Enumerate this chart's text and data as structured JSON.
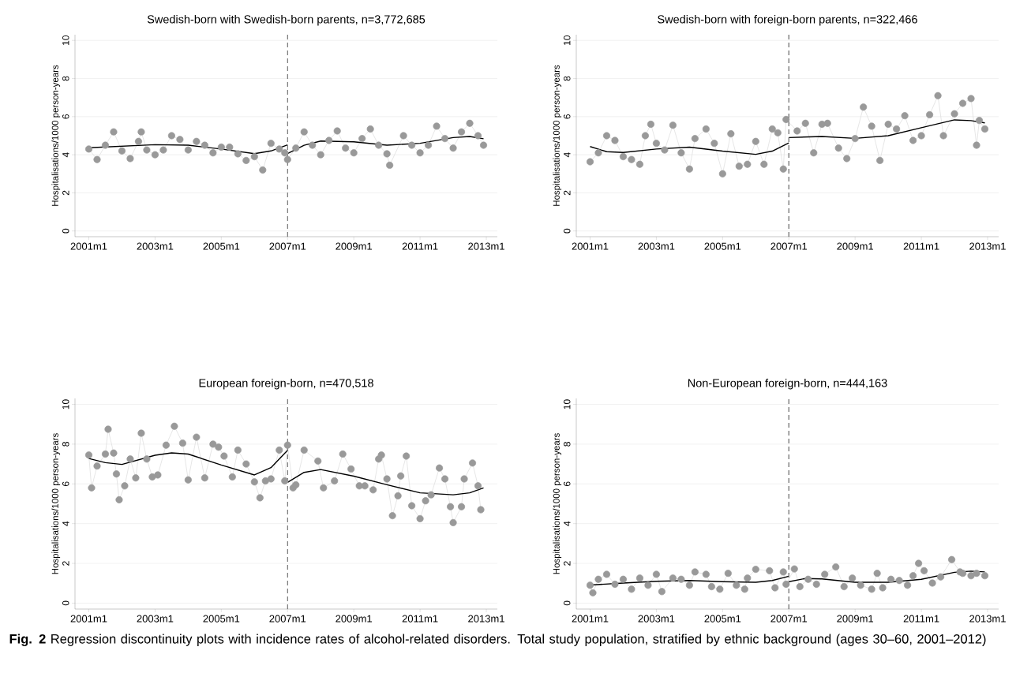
{
  "chart_data": [
    {
      "type": "line",
      "title": "Swedish-born with Swedish-born parents, n=3,772,685",
      "ylabel": "Hospitalisations/1000 person-years",
      "xlim": [
        "2000-08",
        "2013-05"
      ],
      "ylim": [
        -0.3,
        10.3
      ],
      "xticks": [
        {
          "value": "2001-01",
          "label": "2001m1"
        },
        {
          "value": "2003-01",
          "label": "2003m1"
        },
        {
          "value": "2005-01",
          "label": "2005m1"
        },
        {
          "value": "2007-01",
          "label": "2007m1"
        },
        {
          "value": "2009-01",
          "label": "2009m1"
        },
        {
          "value": "2011-01",
          "label": "2011m1"
        },
        {
          "value": "2013-01",
          "label": "2013m1"
        }
      ],
      "yticks": [
        0,
        2,
        4,
        6,
        8,
        10
      ],
      "grid": "y",
      "ref_lines": [
        {
          "axis": "x",
          "value": "2007-01",
          "color": "#707070",
          "line_style": "dashed"
        }
      ],
      "series": [
        {
          "color": "#999999",
          "marker": "circle",
          "x": [
            "2001-01",
            "2001-04",
            "2001-07",
            "2001-10",
            "2002-01",
            "2002-04",
            "2002-07",
            "2002-08",
            "2002-10",
            "2003-01",
            "2003-04",
            "2003-07",
            "2003-10",
            "2004-01",
            "2004-04",
            "2004-07",
            "2004-10",
            "2005-01",
            "2005-04",
            "2005-07",
            "2005-10",
            "2006-01",
            "2006-04",
            "2006-07",
            "2006-10",
            "2006-12",
            "2007-01",
            "2007-04",
            "2007-07",
            "2007-10",
            "2008-01",
            "2008-04",
            "2008-07",
            "2008-10",
            "2009-01",
            "2009-04",
            "2009-07",
            "2009-10",
            "2010-01",
            "2010-02",
            "2010-07",
            "2010-10",
            "2011-01",
            "2011-04",
            "2011-07",
            "2011-10",
            "2012-01",
            "2012-04",
            "2012-07",
            "2012-10",
            "2012-12"
          ],
          "values": [
            4.3,
            3.75,
            4.5,
            5.2,
            4.2,
            3.8,
            4.7,
            5.2,
            4.25,
            4.0,
            4.25,
            5.0,
            4.8,
            4.25,
            4.7,
            4.5,
            4.1,
            4.4,
            4.4,
            4.05,
            3.7,
            3.9,
            3.2,
            4.6,
            4.3,
            4.1,
            3.75,
            4.35,
            5.2,
            4.5,
            4.0,
            4.75,
            5.25,
            4.35,
            4.1,
            4.85,
            5.35,
            4.5,
            4.05,
            3.45,
            5.0,
            4.5,
            4.1,
            4.5,
            5.5,
            4.85,
            4.35,
            5.2,
            5.65,
            5.0,
            4.5
          ]
        },
        {
          "color": "#000000",
          "marker": "none",
          "x": [
            "2001-01",
            "2003-01",
            "2004-01",
            "2005-01",
            "2006-01",
            "2006-07",
            "2007-01"
          ],
          "values": [
            4.37,
            4.53,
            4.5,
            4.3,
            4.06,
            4.2,
            4.52
          ]
        },
        {
          "color": "#000000",
          "marker": "none",
          "x": [
            "2007-01",
            "2007-07",
            "2008-01",
            "2009-01",
            "2010-01",
            "2011-01",
            "2012-01",
            "2012-07",
            "2012-12"
          ],
          "values": [
            4.06,
            4.5,
            4.72,
            4.68,
            4.5,
            4.6,
            4.9,
            4.96,
            4.84
          ]
        }
      ]
    },
    {
      "type": "line",
      "title": "Swedish-born with foreign-born parents, n=322,466",
      "ylabel": "Hospitalisations/1000 person-years",
      "xlim": [
        "2000-08",
        "2013-05"
      ],
      "ylim": [
        -0.3,
        10.3
      ],
      "xticks": [
        {
          "value": "2001-01",
          "label": "2001m1"
        },
        {
          "value": "2003-01",
          "label": "2003m1"
        },
        {
          "value": "2005-01",
          "label": "2005m1"
        },
        {
          "value": "2007-01",
          "label": "2007m1"
        },
        {
          "value": "2009-01",
          "label": "2009m1"
        },
        {
          "value": "2011-01",
          "label": "2011m1"
        },
        {
          "value": "2013-01",
          "label": "2013m1"
        }
      ],
      "yticks": [
        0,
        2,
        4,
        6,
        8,
        10
      ],
      "grid": "y",
      "ref_lines": [
        {
          "axis": "x",
          "value": "2007-01",
          "color": "#707070",
          "line_style": "dashed"
        }
      ],
      "series": [
        {
          "color": "#999999",
          "marker": "circle",
          "x": [
            "2001-01",
            "2001-04",
            "2001-07",
            "2001-10",
            "2002-01",
            "2002-04",
            "2002-07",
            "2002-09",
            "2002-11",
            "2003-01",
            "2003-04",
            "2003-07",
            "2003-10",
            "2004-01",
            "2004-03",
            "2004-07",
            "2004-10",
            "2005-01",
            "2005-04",
            "2005-07",
            "2005-10",
            "2006-01",
            "2006-04",
            "2006-07",
            "2006-09",
            "2006-11",
            "2006-12",
            "2007-04",
            "2007-07",
            "2007-10",
            "2008-01",
            "2008-03",
            "2008-07",
            "2008-10",
            "2009-01",
            "2009-04",
            "2009-07",
            "2009-10",
            "2010-01",
            "2010-04",
            "2010-07",
            "2010-10",
            "2011-01",
            "2011-04",
            "2011-07",
            "2011-09",
            "2012-01",
            "2012-04",
            "2012-07",
            "2012-09",
            "2012-10",
            "2012-12"
          ],
          "values": [
            3.63,
            4.1,
            5.0,
            4.75,
            3.9,
            3.75,
            3.5,
            5.0,
            5.6,
            4.6,
            4.25,
            5.55,
            4.1,
            3.25,
            4.85,
            5.35,
            4.6,
            3.0,
            5.1,
            3.4,
            3.5,
            4.7,
            3.5,
            5.35,
            5.15,
            3.25,
            5.85,
            5.25,
            5.65,
            4.1,
            5.6,
            5.65,
            4.35,
            3.8,
            4.85,
            6.5,
            5.5,
            3.7,
            5.6,
            5.35,
            6.05,
            4.75,
            5.0,
            6.1,
            7.1,
            5.0,
            6.15,
            6.7,
            6.95,
            4.5,
            5.8,
            5.35
          ]
        },
        {
          "color": "#000000",
          "marker": "none",
          "x": [
            "2001-01",
            "2001-07",
            "2002-01",
            "2003-01",
            "2004-01",
            "2005-01",
            "2006-01",
            "2006-07",
            "2007-01"
          ],
          "values": [
            4.43,
            4.16,
            4.12,
            4.3,
            4.4,
            4.19,
            4.02,
            4.19,
            4.62
          ]
        },
        {
          "color": "#000000",
          "marker": "none",
          "x": [
            "2007-01",
            "2008-01",
            "2009-01",
            "2010-01",
            "2011-01",
            "2012-01",
            "2012-07",
            "2012-12"
          ],
          "values": [
            4.9,
            4.96,
            4.86,
            5.0,
            5.42,
            5.83,
            5.79,
            5.67
          ]
        }
      ]
    },
    {
      "type": "line",
      "title": "European foreign-born, n=470,518",
      "ylabel": "Hospitalisations/1000 person-years",
      "xlim": [
        "2000-08",
        "2013-05"
      ],
      "ylim": [
        -0.3,
        10.3
      ],
      "xticks": [
        {
          "value": "2001-01",
          "label": "2001m1"
        },
        {
          "value": "2003-01",
          "label": "2003m1"
        },
        {
          "value": "2005-01",
          "label": "2005m1"
        },
        {
          "value": "2007-01",
          "label": "2007m1"
        },
        {
          "value": "2009-01",
          "label": "2009m1"
        },
        {
          "value": "2011-01",
          "label": "2011m1"
        },
        {
          "value": "2013-01",
          "label": "2013m1"
        }
      ],
      "yticks": [
        0,
        2,
        4,
        6,
        8,
        10
      ],
      "grid": "y",
      "ref_lines": [
        {
          "axis": "x",
          "value": "2007-01",
          "color": "#707070",
          "line_style": "dashed"
        }
      ],
      "series": [
        {
          "color": "#999999",
          "marker": "circle",
          "x": [
            "2001-01",
            "2001-02",
            "2001-04",
            "2001-07",
            "2001-08",
            "2001-10",
            "2001-11",
            "2001-12",
            "2002-02",
            "2002-04",
            "2002-06",
            "2002-08",
            "2002-10",
            "2002-12",
            "2003-02",
            "2003-05",
            "2003-08",
            "2003-11",
            "2004-01",
            "2004-04",
            "2004-07",
            "2004-10",
            "2004-12",
            "2005-02",
            "2005-05",
            "2005-07",
            "2005-10",
            "2006-01",
            "2006-03",
            "2006-05",
            "2006-07",
            "2006-10",
            "2006-12",
            "2007-01",
            "2007-03",
            "2007-04",
            "2007-07",
            "2007-12",
            "2008-02",
            "2008-06",
            "2008-09",
            "2008-12",
            "2009-03",
            "2009-05",
            "2009-08",
            "2009-10",
            "2009-11",
            "2010-01",
            "2010-03",
            "2010-05",
            "2010-06",
            "2010-08",
            "2010-10",
            "2011-01",
            "2011-03",
            "2011-05",
            "2011-08",
            "2011-10",
            "2011-12",
            "2012-01",
            "2012-04",
            "2012-05",
            "2012-08",
            "2012-10",
            "2012-11"
          ],
          "values": [
            7.45,
            5.8,
            6.9,
            7.5,
            8.75,
            7.55,
            6.5,
            5.2,
            5.9,
            7.25,
            6.3,
            8.55,
            7.25,
            6.35,
            6.45,
            7.95,
            8.9,
            8.05,
            6.2,
            8.35,
            6.3,
            8.0,
            7.85,
            7.4,
            6.35,
            7.7,
            7.0,
            6.1,
            5.3,
            6.15,
            6.25,
            7.7,
            6.15,
            7.95,
            5.8,
            5.95,
            7.7,
            7.15,
            5.8,
            6.15,
            7.5,
            6.75,
            5.9,
            5.9,
            5.7,
            7.25,
            7.45,
            6.25,
            4.4,
            5.4,
            6.4,
            7.4,
            4.9,
            4.25,
            5.15,
            5.45,
            6.8,
            6.25,
            4.85,
            4.05,
            4.85,
            6.25,
            7.05,
            5.9,
            4.7
          ]
        },
        {
          "color": "#000000",
          "marker": "none",
          "x": [
            "2001-01",
            "2001-07",
            "2002-01",
            "2003-01",
            "2003-07",
            "2004-01",
            "2005-01",
            "2006-01",
            "2006-07",
            "2007-01"
          ],
          "values": [
            7.28,
            7.07,
            6.98,
            7.44,
            7.56,
            7.5,
            6.95,
            6.45,
            6.82,
            7.69
          ]
        },
        {
          "color": "#000000",
          "marker": "none",
          "x": [
            "2007-01",
            "2007-07",
            "2008-01",
            "2009-01",
            "2010-01",
            "2011-01",
            "2012-01",
            "2012-07",
            "2012-12"
          ],
          "values": [
            6.08,
            6.58,
            6.72,
            6.39,
            5.96,
            5.55,
            5.45,
            5.55,
            5.8
          ]
        }
      ]
    },
    {
      "type": "line",
      "title": "Non-European foreign-born, n=444,163",
      "ylabel": "Hospitalisations/1000 person-years",
      "xlim": [
        "2000-08",
        "2013-05"
      ],
      "ylim": [
        -0.3,
        10.3
      ],
      "xticks": [
        {
          "value": "2001-01",
          "label": "2001m1"
        },
        {
          "value": "2003-01",
          "label": "2003m1"
        },
        {
          "value": "2005-01",
          "label": "2005m1"
        },
        {
          "value": "2007-01",
          "label": "2007m1"
        },
        {
          "value": "2009-01",
          "label": "2009m1"
        },
        {
          "value": "2011-01",
          "label": "2011m1"
        },
        {
          "value": "2013-01",
          "label": "2013m1"
        }
      ],
      "yticks": [
        0,
        2,
        4,
        6,
        8,
        10
      ],
      "grid": "y",
      "ref_lines": [
        {
          "axis": "x",
          "value": "2007-01",
          "color": "#707070",
          "line_style": "dashed"
        }
      ],
      "annotations": [
        "**Fig. 2** Regression discontinuity plots with incidence rates of alcohol-related disorders. Total study population, stratified by ethnic background (ages 30–60, 2001–2012)"
      ],
      "series": [
        {
          "color": "#999999",
          "marker": "circle",
          "x": [
            "2001-01",
            "2001-02",
            "2001-04",
            "2001-07",
            "2001-10",
            "2002-01",
            "2002-04",
            "2002-07",
            "2002-10",
            "2003-01",
            "2003-03",
            "2003-07",
            "2003-10",
            "2004-01",
            "2004-03",
            "2004-07",
            "2004-09",
            "2004-12",
            "2005-03",
            "2005-06",
            "2005-09",
            "2005-10",
            "2006-01",
            "2006-06",
            "2006-08",
            "2006-11",
            "2006-12",
            "2007-03",
            "2007-05",
            "2007-08",
            "2007-11",
            "2008-02",
            "2008-06",
            "2008-09",
            "2008-12",
            "2009-03",
            "2009-07",
            "2009-09",
            "2009-11",
            "2010-02",
            "2010-05",
            "2010-08",
            "2010-10",
            "2010-12",
            "2011-02",
            "2011-05",
            "2011-08",
            "2011-12",
            "2012-03",
            "2012-04",
            "2012-07",
            "2012-09",
            "2012-12"
          ],
          "values": [
            0.9,
            0.52,
            1.2,
            1.45,
            0.95,
            1.2,
            0.7,
            1.26,
            0.9,
            1.45,
            0.58,
            1.26,
            1.2,
            0.9,
            1.57,
            1.45,
            0.83,
            0.7,
            1.5,
            0.9,
            0.7,
            1.26,
            1.7,
            1.63,
            0.77,
            1.57,
            0.95,
            1.72,
            0.83,
            1.2,
            0.95,
            1.45,
            1.82,
            0.83,
            1.26,
            0.9,
            0.7,
            1.5,
            0.77,
            1.2,
            1.14,
            0.9,
            1.38,
            2.0,
            1.63,
            1.01,
            1.32,
            2.19,
            1.57,
            1.5,
            1.38,
            1.5,
            1.38
          ]
        },
        {
          "color": "#000000",
          "marker": "none",
          "x": [
            "2001-01",
            "2002-01",
            "2003-01",
            "2004-01",
            "2005-01",
            "2006-01",
            "2006-07",
            "2007-01"
          ],
          "values": [
            0.91,
            1.01,
            1.1,
            1.14,
            1.08,
            1.05,
            1.14,
            1.35
          ]
        },
        {
          "color": "#000000",
          "marker": "none",
          "x": [
            "2007-01",
            "2007-07",
            "2008-01",
            "2009-01",
            "2010-01",
            "2011-01",
            "2012-01",
            "2012-07",
            "2012-12"
          ],
          "values": [
            1.08,
            1.24,
            1.22,
            1.05,
            1.05,
            1.2,
            1.55,
            1.61,
            1.57
          ]
        }
      ]
    }
  ]
}
